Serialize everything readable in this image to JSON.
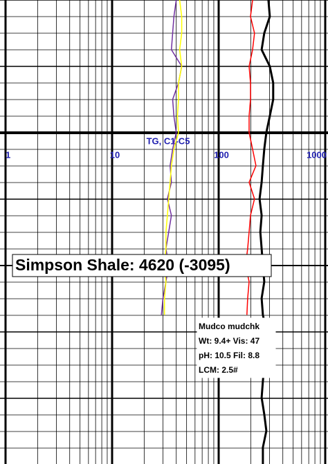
{
  "chart_data": {
    "type": "line",
    "xlabel": "TG, C1-C5",
    "log_x": true,
    "xlim": [
      1,
      1000
    ],
    "xticks": [
      1,
      10,
      100,
      1000
    ],
    "grid": true,
    "tick_color": "#2020b0",
    "series": [
      {
        "color": "#7030a0",
        "values": [
          40,
          38,
          37,
          36,
          45,
          42,
          37,
          38,
          40,
          37,
          35,
          36,
          33,
          36,
          34,
          32,
          34,
          32,
          30,
          29,
          null,
          null,
          null,
          null,
          null,
          null,
          null,
          null,
          null
        ]
      },
      {
        "color": "#ffff00",
        "values": [
          43,
          45,
          45,
          43,
          45,
          42,
          42,
          41,
          42,
          38,
          36,
          35,
          34,
          33,
          32,
          32,
          31,
          32,
          31,
          31,
          null,
          null,
          null,
          null,
          null,
          null,
          null,
          null,
          null
        ]
      },
      {
        "color": "#ff0000",
        "values": [
          208,
          199,
          217,
          208,
          193,
          199,
          199,
          193,
          193,
          208,
          224,
          193,
          217,
          199,
          193,
          187,
          179,
          193,
          187,
          184,
          null,
          null,
          null,
          null,
          null,
          null,
          null,
          null,
          null
        ]
      },
      {
        "color": "#000000",
        "width": 3,
        "values": [
          293,
          302,
          268,
          253,
          302,
          325,
          325,
          302,
          280,
          268,
          260,
          253,
          242,
          253,
          246,
          253,
          260,
          268,
          253,
          260,
          280,
          280,
          268,
          260,
          253,
          268,
          280,
          260,
          260
        ]
      }
    ],
    "annotations": [
      {
        "text": "Simpson Shale: 4620 (-3095)"
      },
      {
        "lines": [
          "Mudco mudchk",
          "Wt: 9.4+  Vis: 47",
          "pH: 10.5  Fil: 8.8",
          "LCM: 2.5#"
        ]
      }
    ]
  }
}
